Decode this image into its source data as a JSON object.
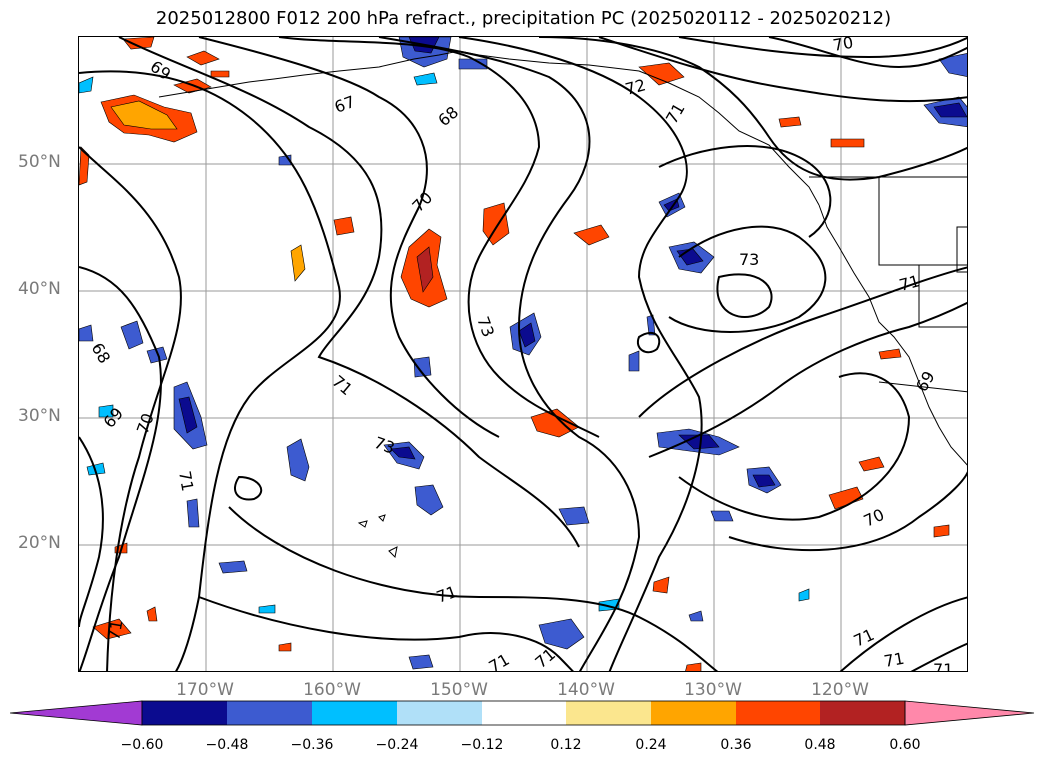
{
  "title": "2025012800 F012 200 hPa refract., precipitation PC (2025020112 - 2025020212)",
  "map": {
    "lat_labels": [
      "50°N",
      "40°N",
      "30°N",
      "20°N"
    ],
    "lon_labels": [
      "170°W",
      "160°W",
      "150°W",
      "140°W",
      "130°W",
      "120°W"
    ],
    "contour_labels": [
      "69",
      "67",
      "68",
      "70",
      "72",
      "71",
      "70",
      "73",
      "71",
      "73",
      "71",
      "69",
      "68",
      "69",
      "70",
      "71",
      "73",
      "71",
      "70",
      "71",
      "71",
      "71",
      "71",
      "71",
      "71"
    ]
  },
  "colorbar": {
    "ticks": [
      "−0.60",
      "−0.48",
      "−0.36",
      "−0.24",
      "−0.12",
      "0.12",
      "0.24",
      "0.36",
      "0.48",
      "0.60"
    ],
    "colors": [
      "#a23ad3",
      "#0b0b8f",
      "#3d5bd0",
      "#00bfff",
      "#b0e0f8",
      "#ffffff",
      "#fbe68e",
      "#ffa500",
      "#ff4500",
      "#b22222",
      "#ff88aa"
    ]
  }
}
